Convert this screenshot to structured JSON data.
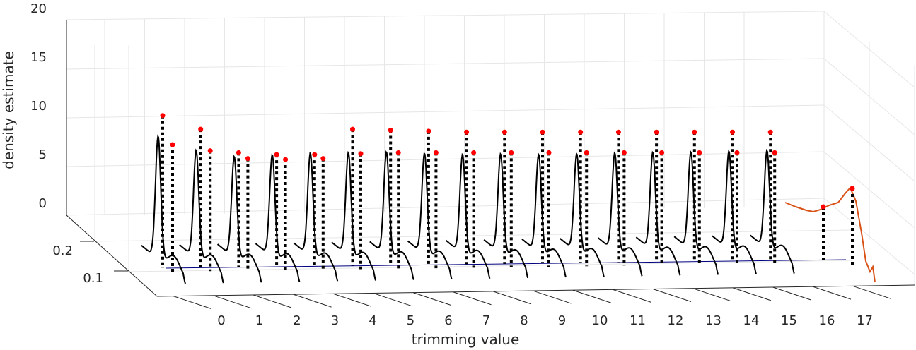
{
  "chart_data": {
    "type": "line",
    "subtype": "3d-waterfall",
    "title": "",
    "xlabel": "trimming value",
    "ylabel": "",
    "zlabel": "density estimate",
    "x_ticks": [
      0,
      1,
      2,
      3,
      4,
      5,
      6,
      7,
      8,
      9,
      10,
      11,
      12,
      13,
      14,
      15,
      16,
      17
    ],
    "y_ticks": [
      0.1,
      0.2
    ],
    "z_ticks": [
      0,
      5,
      10,
      15,
      20
    ],
    "zlim": [
      0,
      20
    ],
    "grid": true,
    "colors": {
      "curve": "#000000",
      "last_curve": "#d95319",
      "markers": "#ff0000",
      "baseline": "#00007f",
      "stems": "#000000"
    },
    "series": [
      {
        "trimming": 0,
        "peak_z": 12.5,
        "marker_high_z": 10.2,
        "marker_low_z": 7.0
      },
      {
        "trimming": 1,
        "peak_z": 11.0,
        "marker_high_z": 8.8,
        "marker_low_z": 6.6
      },
      {
        "trimming": 2,
        "peak_z": 10.3,
        "marker_high_z": 6.4,
        "marker_low_z": 5.8
      },
      {
        "trimming": 3,
        "peak_z": 10.4,
        "marker_high_z": 6.2,
        "marker_low_z": 5.7
      },
      {
        "trimming": 4,
        "peak_z": 10.5,
        "marker_high_z": 6.2,
        "marker_low_z": 5.8
      },
      {
        "trimming": 5,
        "peak_z": 10.5,
        "marker_high_z": 8.8,
        "marker_low_z": 6.3
      },
      {
        "trimming": 6,
        "peak_z": 10.5,
        "marker_high_z": 8.7,
        "marker_low_z": 6.4
      },
      {
        "trimming": 7,
        "peak_z": 10.3,
        "marker_high_z": 8.6,
        "marker_low_z": 6.4
      },
      {
        "trimming": 8,
        "peak_z": 10.1,
        "marker_high_z": 8.5,
        "marker_low_z": 6.4
      },
      {
        "trimming": 9,
        "peak_z": 10.1,
        "marker_high_z": 8.5,
        "marker_low_z": 6.4
      },
      {
        "trimming": 10,
        "peak_z": 10.0,
        "marker_high_z": 8.5,
        "marker_low_z": 6.4
      },
      {
        "trimming": 11,
        "peak_z": 10.0,
        "marker_high_z": 8.5,
        "marker_low_z": 6.4
      },
      {
        "trimming": 12,
        "peak_z": 10.0,
        "marker_high_z": 8.5,
        "marker_low_z": 6.4
      },
      {
        "trimming": 13,
        "peak_z": 10.0,
        "marker_high_z": 8.5,
        "marker_low_z": 6.4
      },
      {
        "trimming": 14,
        "peak_z": 10.0,
        "marker_high_z": 8.5,
        "marker_low_z": 6.4
      },
      {
        "trimming": 15,
        "peak_z": 10.0,
        "marker_high_z": 8.5,
        "marker_low_z": 6.4
      },
      {
        "trimming": 16,
        "peak_z": 10.0,
        "marker_high_z": 8.5,
        "marker_low_z": 6.4
      },
      {
        "trimming": 17,
        "peak_z": 10.0,
        "marker_high_z": 8.5,
        "marker_low_z": 6.4
      }
    ]
  }
}
